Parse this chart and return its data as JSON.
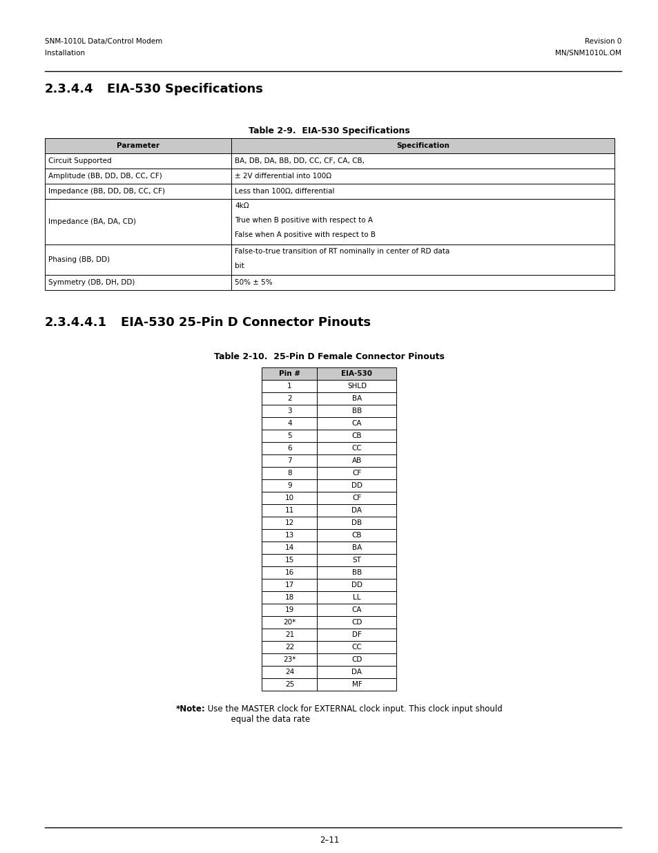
{
  "bg_color": "#ffffff",
  "header_left_line1": "SNM-1010L Data/Control Modem",
  "header_left_line2": "Installation",
  "header_right_line1": "Revision 0",
  "header_right_line2": "MN/SNM1010L.OM",
  "header_font_size": 7.5,
  "section_title": "2.3.4.4",
  "section_title_suffix": "EIA-530 Specifications",
  "section_title_fontsize": 13,
  "table1_title": "Table 2-9.  EIA-530 Specifications",
  "table1_title_fontsize": 9,
  "table1_header": [
    "Parameter",
    "Specification"
  ],
  "table1_header_bg": "#c8c8c8",
  "table1_rows": [
    [
      "Circuit Supported",
      "BA, DB, DA, BB, DD, CC, CF, CA, CB,"
    ],
    [
      "Amplitude (BB, DD, DB, CC, CF)",
      "± 2V differential into 100Ω"
    ],
    [
      "Impedance (BB, DD, DB, CC, CF)",
      "Less than 100Ω, differential"
    ],
    [
      "Impedance (BA, DA, CD)",
      "4kΩ\nTrue when B positive with respect to A\nFalse when A positive with respect to B"
    ],
    [
      "Phasing (BB, DD)",
      "False-to-true transition of RT nominally in center of RD data\nbit"
    ],
    [
      "Symmetry (DB, DH, DD)",
      "50% ± 5%"
    ]
  ],
  "table1_row_heights": [
    1,
    1,
    1,
    3,
    2,
    1
  ],
  "section2_title": "2.3.4.4.1",
  "section2_title_suffix": "EIA-530 25-Pin D Connector Pinouts",
  "section2_title_fontsize": 13,
  "table2_title": "Table 2-10.  25-Pin D Female Connector Pinouts",
  "table2_title_fontsize": 9,
  "table2_header": [
    "Pin #",
    "EIA-530"
  ],
  "table2_header_bg": "#c8c8c8",
  "table2_rows": [
    [
      "1",
      "SHLD"
    ],
    [
      "2",
      "BA"
    ],
    [
      "3",
      "BB"
    ],
    [
      "4",
      "CA"
    ],
    [
      "5",
      "CB"
    ],
    [
      "6",
      "CC"
    ],
    [
      "7",
      "AB"
    ],
    [
      "8",
      "CF"
    ],
    [
      "9",
      "DD"
    ],
    [
      "10",
      "CF"
    ],
    [
      "11",
      "DA"
    ],
    [
      "12",
      "DB"
    ],
    [
      "13",
      "CB"
    ],
    [
      "14",
      "BA"
    ],
    [
      "15",
      "ST"
    ],
    [
      "16",
      "BB"
    ],
    [
      "17",
      "DD"
    ],
    [
      "18",
      "LL"
    ],
    [
      "19",
      "CA"
    ],
    [
      "20*",
      "CD"
    ],
    [
      "21",
      "DF"
    ],
    [
      "22",
      "CC"
    ],
    [
      "23*",
      "CD"
    ],
    [
      "24",
      "DA"
    ],
    [
      "25",
      "MF"
    ]
  ],
  "note_bold": "*Note:",
  "note_text": " Use the MASTER clock for EXTERNAL clock input. This clock input should\n          equal the data rate",
  "note_fontsize": 8.5,
  "footer_line": "2–11",
  "footer_fontsize": 8.5
}
